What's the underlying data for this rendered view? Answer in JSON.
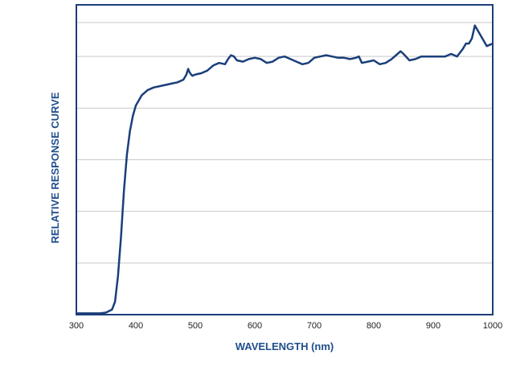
{
  "chart_data": {
    "type": "line",
    "title": "",
    "xlabel": "WAVELENGTH (nm)",
    "ylabel": "RELATIVE RESPONSE CURVE",
    "xlim": [
      300,
      1000
    ],
    "ylim": [
      0,
      1.2
    ],
    "xticks": [
      300,
      400,
      500,
      600,
      700,
      800,
      900,
      1000
    ],
    "yticks": [
      0,
      0.2,
      0.4,
      0.6,
      0.8,
      1.0,
      1.2
    ],
    "show_ytick_labels": false,
    "grid": "horizontal",
    "legend": "none",
    "line_color": "#1a3f7a",
    "frame_color": "#1a3f7a",
    "grid_color": "#c9c9c9",
    "label_color": "#1f4e8c",
    "series": [
      {
        "x": [
          300,
          340,
          350,
          360,
          365,
          370,
          375,
          380,
          385,
          390,
          395,
          400,
          405,
          410,
          415,
          420,
          425,
          430,
          440,
          450,
          460,
          470,
          480,
          485,
          488,
          490,
          493,
          495,
          500,
          510,
          520,
          530,
          540,
          550,
          555,
          560,
          565,
          570,
          580,
          590,
          600,
          610,
          620,
          630,
          640,
          650,
          660,
          670,
          680,
          690,
          700,
          710,
          720,
          730,
          740,
          750,
          760,
          770,
          775,
          780,
          790,
          800,
          810,
          820,
          830,
          840,
          845,
          850,
          860,
          870,
          880,
          890,
          900,
          910,
          920,
          930,
          940,
          950,
          955,
          960,
          965,
          970,
          975,
          980,
          985,
          990,
          995,
          1000
        ],
        "y": [
          0.005,
          0.005,
          0.008,
          0.02,
          0.05,
          0.15,
          0.3,
          0.48,
          0.62,
          0.71,
          0.77,
          0.81,
          0.83,
          0.85,
          0.86,
          0.87,
          0.875,
          0.88,
          0.885,
          0.89,
          0.895,
          0.9,
          0.91,
          0.93,
          0.952,
          0.94,
          0.93,
          0.925,
          0.93,
          0.935,
          0.945,
          0.965,
          0.975,
          0.97,
          0.99,
          1.005,
          1.0,
          0.985,
          0.98,
          0.99,
          0.995,
          0.99,
          0.975,
          0.98,
          0.995,
          1.0,
          0.99,
          0.98,
          0.97,
          0.975,
          0.995,
          1.0,
          1.005,
          1.0,
          0.995,
          0.995,
          0.99,
          0.995,
          1.0,
          0.975,
          0.98,
          0.985,
          0.97,
          0.975,
          0.99,
          1.01,
          1.02,
          1.01,
          0.985,
          0.99,
          1.0,
          1.0,
          1.0,
          1.0,
          1.0,
          1.01,
          1.0,
          1.03,
          1.05,
          1.05,
          1.07,
          1.12,
          1.1,
          1.08,
          1.06,
          1.04,
          1.045,
          1.05
        ]
      }
    ]
  }
}
